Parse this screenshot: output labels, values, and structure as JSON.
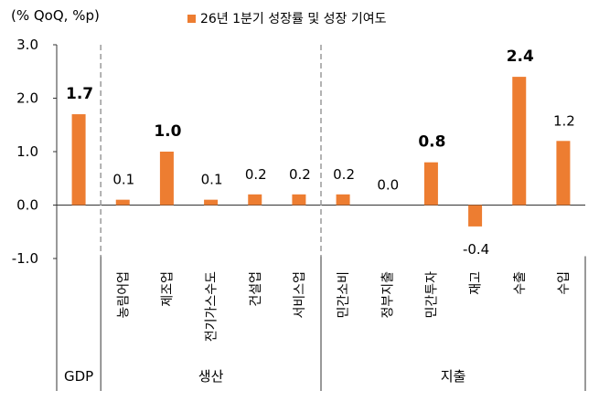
{
  "chart_data": {
    "type": "bar",
    "unit_label": "(% QoQ, %p)",
    "categories": [
      "GDP",
      "농림어업",
      "제조업",
      "전기가스수도",
      "건설업",
      "서비스업",
      "민간소비",
      "정부지출",
      "민간투자",
      "재고",
      "수출",
      "수입"
    ],
    "series": [
      {
        "name": "26년 1분기 성장률 및 성장 기여도",
        "color": "#ED7D31",
        "values": [
          1.7,
          0.1,
          1.0,
          0.1,
          0.2,
          0.2,
          0.2,
          0.0,
          0.8,
          -0.4,
          2.4,
          1.2
        ]
      }
    ],
    "data_labels": [
      "1.7",
      "0.1",
      "1.0",
      "0.1",
      "0.2",
      "0.2",
      "0.2",
      "0.0",
      "0.8",
      "-0.4",
      "2.4",
      "1.2"
    ],
    "bold_labels": [
      0,
      2,
      8,
      10
    ],
    "ylim": [
      -1.0,
      3.0
    ],
    "yticks": [
      "3.0",
      "2.0",
      "1.0",
      "0.0",
      "-1.0"
    ],
    "groups": [
      {
        "label": "GDP",
        "span": [
          0,
          0
        ]
      },
      {
        "label": "생산",
        "span": [
          1,
          5
        ]
      },
      {
        "label": "지출",
        "span": [
          6,
          11
        ]
      }
    ],
    "legend_position": "top",
    "grid": false
  }
}
